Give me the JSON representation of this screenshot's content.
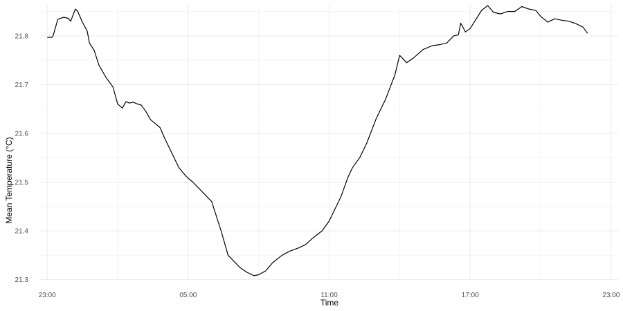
{
  "chart_data": {
    "type": "line",
    "title": "",
    "xlabel": "Time",
    "ylabel": "Mean Temperature (°C)",
    "x_tick_labels": [
      "23:00",
      "05:00",
      "11:00",
      "17:00",
      "23:00"
    ],
    "y_tick_labels": [
      "21.3",
      "21.4",
      "21.5",
      "21.6",
      "21.7",
      "21.8"
    ],
    "xlim_hours": [
      -0.3,
      24.3
    ],
    "ylim": [
      21.298,
      21.865
    ],
    "grid": true,
    "legend": "none",
    "colors": {
      "line": "#000000",
      "grid_major": "#ebebeb",
      "grid_minor": "#f5f5f5"
    },
    "series": [
      {
        "x_hours": [
          0,
          0.2,
          0.25,
          0.45,
          0.7,
          0.9,
          1.0,
          1.2,
          1.3,
          1.5,
          1.7,
          1.8,
          2.0,
          2.2,
          2.5,
          2.8,
          3.0,
          3.2,
          3.35,
          3.5,
          3.65,
          3.75,
          3.85,
          4.0,
          4.2,
          4.4,
          4.6,
          4.8,
          5.0,
          5.3,
          5.6,
          5.8,
          6.0,
          6.2,
          6.5,
          7.0,
          7.4,
          7.7,
          7.9,
          8.0,
          8.2,
          8.5,
          8.8,
          9.0,
          9.3,
          9.6,
          10.0,
          10.3,
          10.7,
          11.0,
          11.3,
          11.7,
          12.0,
          12.2,
          12.5,
          12.8,
          13.0,
          13.3,
          13.6,
          14.0,
          14.4,
          14.8,
          15.0,
          15.1,
          15.3,
          15.6,
          16.0,
          16.4,
          16.7,
          17.0,
          17.3,
          17.5,
          17.6,
          17.8,
          18.0,
          18.2,
          18.5,
          18.75,
          19.0,
          19.3,
          19.6,
          19.9,
          20.2,
          20.5,
          20.8,
          21.0,
          21.3,
          21.6,
          21.9,
          22.2,
          22.5,
          22.8,
          23.0
        ],
        "y": [
          21.797,
          21.797,
          21.8,
          21.834,
          21.838,
          21.836,
          21.83,
          21.855,
          21.85,
          21.828,
          21.81,
          21.785,
          21.77,
          21.74,
          21.715,
          21.695,
          21.66,
          21.652,
          21.665,
          21.662,
          21.664,
          21.662,
          21.66,
          21.658,
          21.645,
          21.628,
          21.62,
          21.612,
          21.59,
          21.56,
          21.53,
          21.518,
          21.508,
          21.5,
          21.485,
          21.46,
          21.4,
          21.35,
          21.34,
          21.335,
          21.325,
          21.315,
          21.308,
          21.31,
          21.318,
          21.335,
          21.35,
          21.358,
          21.365,
          21.372,
          21.385,
          21.4,
          21.42,
          21.44,
          21.47,
          21.51,
          21.53,
          21.55,
          21.58,
          21.63,
          21.67,
          21.72,
          21.76,
          21.755,
          21.745,
          21.755,
          21.772,
          21.78,
          21.782,
          21.785,
          21.8,
          21.802,
          21.826,
          21.808,
          21.815,
          21.83,
          21.853,
          21.862,
          21.848,
          21.845,
          21.85,
          21.85,
          21.86,
          21.855,
          21.852,
          21.84,
          21.828,
          21.835,
          21.832,
          21.83,
          21.825,
          21.818,
          21.805
        ]
      }
    ]
  }
}
